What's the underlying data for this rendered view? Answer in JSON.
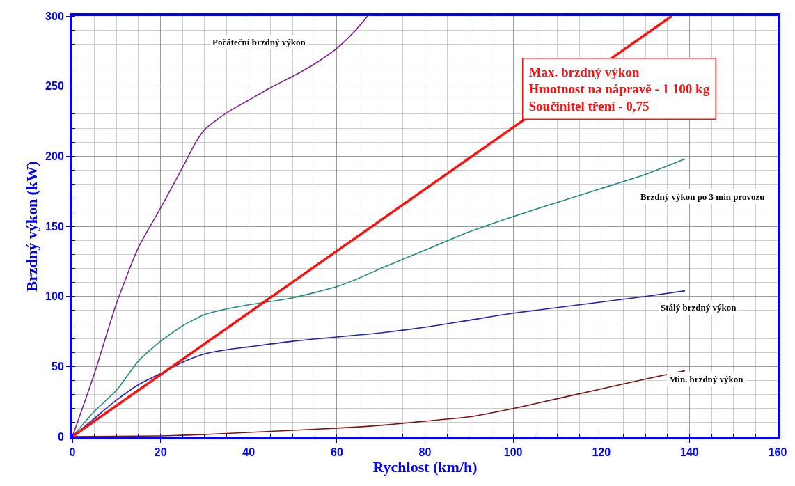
{
  "chart_data": {
    "type": "line",
    "xlabel": "Rychlost (km/h)",
    "ylabel": "Brzdný výkon (kW)",
    "xlim": [
      0,
      160
    ],
    "xticks": [
      0,
      20,
      40,
      60,
      80,
      100,
      120,
      140,
      160
    ],
    "ylim": [
      0,
      300
    ],
    "yticks": [
      0,
      50,
      100,
      150,
      200,
      250,
      300
    ],
    "grid": true,
    "legend": false,
    "marker": "none",
    "line_style": "solid",
    "series": [
      {
        "name": "Počáteční brzdný výkon",
        "color": "#7f1f8f",
        "x": [
          0,
          5,
          10,
          15,
          20,
          25,
          28,
          30,
          35,
          40,
          45,
          50,
          55,
          60,
          64,
          67
        ],
        "values": [
          0,
          45,
          95,
          135,
          163,
          192,
          210,
          219,
          231,
          240,
          249,
          257,
          266,
          277,
          289,
          300
        ]
      },
      {
        "name": "Brzdný výkon po 3 min provozu",
        "color": "#1f8a80",
        "x": [
          0,
          5,
          10,
          15,
          20,
          25,
          30,
          35,
          40,
          50,
          60,
          65,
          70,
          80,
          90,
          100,
          110,
          120,
          130,
          139
        ],
        "values": [
          0,
          18,
          33,
          54,
          68,
          79,
          87,
          91,
          94,
          99,
          107,
          113,
          120,
          133,
          146,
          157,
          167,
          177,
          187,
          198
        ]
      },
      {
        "name": "Stálý brzdný výkon",
        "color": "#2222b0",
        "x": [
          0,
          5,
          10,
          15,
          20,
          25,
          30,
          35,
          40,
          50,
          60,
          70,
          80,
          90,
          100,
          110,
          120,
          130,
          139
        ],
        "values": [
          0,
          13,
          26,
          37,
          45,
          53,
          59,
          62,
          64,
          68,
          71,
          74,
          78,
          83,
          88,
          92,
          96,
          100,
          104
        ]
      },
      {
        "name": "Min. brzdný výkon",
        "color": "#7a1414",
        "x": [
          0,
          20,
          30,
          40,
          50,
          60,
          70,
          80,
          90,
          100,
          110,
          120,
          130,
          139
        ],
        "values": [
          0,
          0.5,
          1.5,
          3,
          4.5,
          6,
          8,
          11,
          14,
          20,
          27,
          34,
          41,
          47
        ]
      },
      {
        "name": "Max. brzdný výkon\nHmotnost na nápravě - 1 100 kg\nSoučinitel tření - 0,75",
        "color": "#ff1010",
        "x": [
          0,
          136
        ],
        "values": [
          0,
          300
        ]
      }
    ]
  }
}
